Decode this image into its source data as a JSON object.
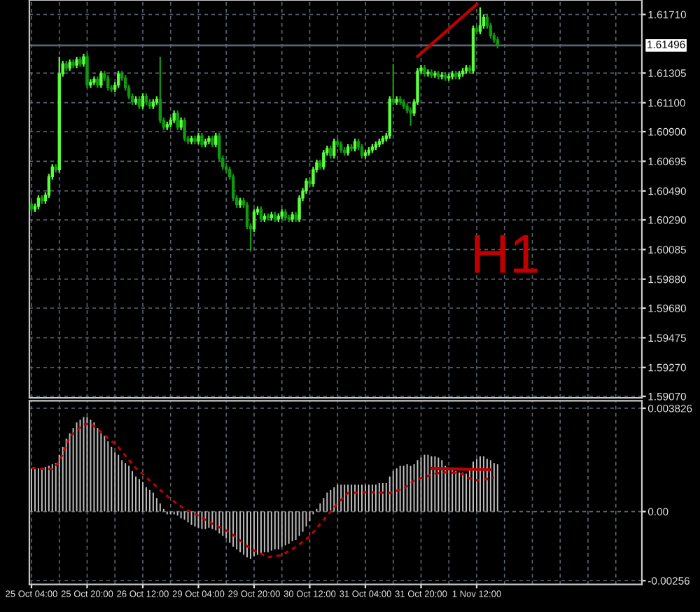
{
  "chart_data": [
    {
      "type": "candlestick",
      "categories": [
        null,
        null,
        null,
        null,
        null,
        null,
        null,
        null,
        null,
        null,
        null,
        null,
        null,
        null,
        null,
        null,
        null,
        null,
        null,
        null,
        null,
        null,
        null,
        null,
        null,
        null,
        null,
        null,
        null,
        null,
        null,
        null,
        null,
        null,
        null,
        null,
        null,
        null,
        null,
        null,
        null,
        null,
        null,
        null,
        null,
        null,
        null,
        null,
        null,
        null,
        null,
        null,
        null,
        null,
        null,
        null,
        null,
        null,
        null,
        null,
        null,
        null,
        null,
        null,
        null,
        null,
        null,
        null,
        null,
        null,
        null,
        null,
        null,
        null,
        null,
        null,
        null,
        null,
        null,
        null,
        null,
        null,
        null,
        null,
        null,
        null,
        null,
        null,
        null,
        null,
        null,
        null,
        null,
        null,
        null,
        null,
        null,
        null,
        null,
        null,
        null,
        null,
        null,
        null,
        null,
        null,
        null,
        null,
        null,
        null,
        null,
        null,
        null,
        null,
        null,
        null,
        null,
        null,
        null,
        null,
        null,
        null,
        null,
        null,
        null,
        null,
        null,
        null,
        null,
        null,
        null,
        null,
        null,
        null,
        null,
        null,
        null,
        null,
        null,
        null,
        null,
        null,
        null,
        null,
        null,
        null,
        null,
        null,
        null,
        null,
        null,
        null,
        null,
        null,
        null,
        null,
        null,
        null,
        null,
        null,
        null,
        null,
        null,
        null,
        null,
        null,
        null,
        null,
        null,
        null,
        null,
        null,
        null,
        null,
        null,
        null
      ],
      "ohlc": [
        [
          1.604,
          1.6042,
          1.60344,
          1.60364
        ],
        [
          1.60364,
          1.60403,
          1.60344,
          1.60383
        ],
        [
          1.60383,
          1.6046,
          1.60363,
          1.6044
        ],
        [
          1.6044,
          1.6046,
          1.60402,
          1.60422
        ],
        [
          1.60422,
          1.60481,
          1.60402,
          1.60461
        ],
        [
          1.60461,
          1.60608,
          1.60441,
          1.60588
        ],
        [
          1.60588,
          1.60676,
          1.60568,
          1.60656
        ],
        [
          1.60656,
          1.60676,
          1.60617,
          1.60637
        ],
        [
          1.60637,
          1.61418,
          1.60617,
          1.613
        ],
        [
          1.613,
          1.61389,
          1.6128,
          1.61369
        ],
        [
          1.61369,
          1.61389,
          1.6132,
          1.6134
        ],
        [
          1.6134,
          1.61399,
          1.6132,
          1.61379
        ],
        [
          1.61379,
          1.61399,
          1.61339,
          1.61359
        ],
        [
          1.61359,
          1.61418,
          1.61339,
          1.61398
        ],
        [
          1.61398,
          1.61418,
          1.61349,
          1.61369
        ],
        [
          1.61369,
          1.61438,
          1.61349,
          1.61418
        ],
        [
          1.61418,
          1.61438,
          1.61202,
          1.61222
        ],
        [
          1.61222,
          1.61262,
          1.61202,
          1.61242
        ],
        [
          1.61242,
          1.61281,
          1.61222,
          1.61261
        ],
        [
          1.61261,
          1.61281,
          1.61202,
          1.61222
        ],
        [
          1.61222,
          1.6132,
          1.61202,
          1.613
        ],
        [
          1.613,
          1.6132,
          1.61251,
          1.61271
        ],
        [
          1.61271,
          1.61291,
          1.61183,
          1.61203
        ],
        [
          1.61203,
          1.61223,
          1.61173,
          1.61193
        ],
        [
          1.61193,
          1.61242,
          1.61173,
          1.61222
        ],
        [
          1.61222,
          1.6132,
          1.61202,
          1.613
        ],
        [
          1.613,
          1.6132,
          1.61251,
          1.61271
        ],
        [
          1.61271,
          1.61291,
          1.61183,
          1.61203
        ],
        [
          1.61203,
          1.61223,
          1.61124,
          1.61144
        ],
        [
          1.61144,
          1.61164,
          1.61085,
          1.61105
        ],
        [
          1.61105,
          1.61145,
          1.61085,
          1.61125
        ],
        [
          1.61125,
          1.61145,
          1.61056,
          1.61076
        ],
        [
          1.61076,
          1.61164,
          1.61056,
          1.61144
        ],
        [
          1.61144,
          1.61164,
          1.61085,
          1.61105
        ],
        [
          1.61105,
          1.61125,
          1.61056,
          1.61076
        ],
        [
          1.61076,
          1.61125,
          1.61056,
          1.61105
        ],
        [
          1.61105,
          1.61145,
          1.61085,
          1.61125
        ],
        [
          1.61125,
          1.61418,
          1.60958,
          1.60978
        ],
        [
          1.60978,
          1.60998,
          1.6091,
          1.6093
        ],
        [
          1.6093,
          1.60969,
          1.6091,
          1.60949
        ],
        [
          1.60949,
          1.60998,
          1.60929,
          1.60978
        ],
        [
          1.60978,
          1.61047,
          1.60958,
          1.61027
        ],
        [
          1.61027,
          1.61047,
          1.6091,
          1.6093
        ],
        [
          1.6093,
          1.60998,
          1.6091,
          1.60978
        ],
        [
          1.60978,
          1.60998,
          1.60832,
          1.60852
        ],
        [
          1.60852,
          1.60872,
          1.60812,
          1.60832
        ],
        [
          1.60832,
          1.60872,
          1.60812,
          1.60852
        ],
        [
          1.60852,
          1.60872,
          1.60812,
          1.60832
        ],
        [
          1.60832,
          1.60891,
          1.60812,
          1.60871
        ],
        [
          1.60871,
          1.60891,
          1.60792,
          1.60812
        ],
        [
          1.60812,
          1.60852,
          1.60792,
          1.60832
        ],
        [
          1.60832,
          1.60872,
          1.60812,
          1.60852
        ],
        [
          1.60852,
          1.60872,
          1.60792,
          1.60812
        ],
        [
          1.60812,
          1.60891,
          1.60792,
          1.60871
        ],
        [
          1.60871,
          1.60891,
          1.60695,
          1.60715
        ],
        [
          1.60715,
          1.60735,
          1.60636,
          1.60656
        ],
        [
          1.60656,
          1.60676,
          1.60617,
          1.60637
        ],
        [
          1.60637,
          1.60657,
          1.60568,
          1.60588
        ],
        [
          1.60588,
          1.60608,
          1.6042,
          1.6044
        ],
        [
          1.6044,
          1.6046,
          1.60373,
          1.60393
        ],
        [
          1.60393,
          1.60442,
          1.60373,
          1.60422
        ],
        [
          1.60422,
          1.60442,
          1.60373,
          1.60393
        ],
        [
          1.60393,
          1.60413,
          1.60226,
          1.60246
        ],
        [
          1.60246,
          1.60266,
          1.60071,
          1.60227
        ],
        [
          1.60227,
          1.60364,
          1.60207,
          1.60344
        ],
        [
          1.60344,
          1.60384,
          1.60324,
          1.60364
        ],
        [
          1.60364,
          1.60384,
          1.60275,
          1.60295
        ],
        [
          1.60295,
          1.60335,
          1.60275,
          1.60315
        ],
        [
          1.60315,
          1.60335,
          1.60285,
          1.60305
        ],
        [
          1.60305,
          1.60345,
          1.60285,
          1.60325
        ],
        [
          1.60325,
          1.60345,
          1.60275,
          1.60295
        ],
        [
          1.60295,
          1.60335,
          1.60275,
          1.60315
        ],
        [
          1.60315,
          1.60364,
          1.60295,
          1.60344
        ],
        [
          1.60344,
          1.60364,
          1.60285,
          1.60305
        ],
        [
          1.60305,
          1.60325,
          1.60275,
          1.60295
        ],
        [
          1.60295,
          1.60345,
          1.60275,
          1.60325
        ],
        [
          1.60325,
          1.60345,
          1.60275,
          1.60295
        ],
        [
          1.60295,
          1.6046,
          1.60275,
          1.6044
        ],
        [
          1.6044,
          1.6051,
          1.6042,
          1.6049
        ],
        [
          1.6049,
          1.60579,
          1.6047,
          1.60559
        ],
        [
          1.60559,
          1.60579,
          1.60519,
          1.60539
        ],
        [
          1.60539,
          1.60657,
          1.60519,
          1.60637
        ],
        [
          1.60637,
          1.60706,
          1.60617,
          1.60686
        ],
        [
          1.60686,
          1.60706,
          1.60636,
          1.60656
        ],
        [
          1.60656,
          1.60774,
          1.60636,
          1.60754
        ],
        [
          1.60754,
          1.60803,
          1.60734,
          1.60783
        ],
        [
          1.60783,
          1.60803,
          1.60714,
          1.60734
        ],
        [
          1.60734,
          1.60852,
          1.60714,
          1.60832
        ],
        [
          1.60832,
          1.60852,
          1.60792,
          1.60812
        ],
        [
          1.60812,
          1.60832,
          1.60753,
          1.60773
        ],
        [
          1.60773,
          1.60793,
          1.60734,
          1.60754
        ],
        [
          1.60754,
          1.60813,
          1.60734,
          1.60793
        ],
        [
          1.60793,
          1.60813,
          1.60763,
          1.60783
        ],
        [
          1.60783,
          1.60852,
          1.60763,
          1.60832
        ],
        [
          1.60832,
          1.60852,
          1.60773,
          1.60793
        ],
        [
          1.60793,
          1.60813,
          1.60714,
          1.60734
        ],
        [
          1.60734,
          1.60774,
          1.60714,
          1.60754
        ],
        [
          1.60754,
          1.60793,
          1.60734,
          1.60773
        ],
        [
          1.60773,
          1.60813,
          1.60753,
          1.60793
        ],
        [
          1.60793,
          1.60832,
          1.60773,
          1.60812
        ],
        [
          1.60812,
          1.60852,
          1.60792,
          1.60832
        ],
        [
          1.60832,
          1.60872,
          1.60812,
          1.60852
        ],
        [
          1.60852,
          1.60891,
          1.60832,
          1.60871
        ],
        [
          1.60871,
          1.61145,
          1.60851,
          1.61125
        ],
        [
          1.61125,
          1.61369,
          1.61085,
          1.61105
        ],
        [
          1.61105,
          1.61145,
          1.61085,
          1.61125
        ],
        [
          1.61125,
          1.61145,
          1.61085,
          1.61105
        ],
        [
          1.61105,
          1.61125,
          1.61056,
          1.61076
        ],
        [
          1.61076,
          1.61096,
          1.61027,
          1.61047
        ],
        [
          1.61047,
          1.61067,
          1.60939,
          1.61027
        ],
        [
          1.61027,
          1.61125,
          1.61007,
          1.61105
        ],
        [
          1.61105,
          1.6134,
          1.61085,
          1.6132
        ],
        [
          1.6132,
          1.6136,
          1.613,
          1.6134
        ],
        [
          1.6134,
          1.6136,
          1.6128,
          1.613
        ],
        [
          1.613,
          1.6133,
          1.6128,
          1.6131
        ],
        [
          1.6131,
          1.6133,
          1.61271,
          1.61291
        ],
        [
          1.61291,
          1.6132,
          1.61271,
          1.613
        ],
        [
          1.613,
          1.6132,
          1.61261,
          1.61281
        ],
        [
          1.61281,
          1.61311,
          1.61261,
          1.61291
        ],
        [
          1.61291,
          1.61311,
          1.61251,
          1.61271
        ],
        [
          1.61271,
          1.61301,
          1.61251,
          1.61281
        ],
        [
          1.61281,
          1.6132,
          1.61261,
          1.613
        ],
        [
          1.613,
          1.6132,
          1.61261,
          1.61281
        ],
        [
          1.61281,
          1.6132,
          1.61261,
          1.613
        ],
        [
          1.613,
          1.6134,
          1.6128,
          1.6132
        ],
        [
          1.6132,
          1.6136,
          1.613,
          1.6134
        ],
        [
          1.6134,
          1.6136,
          1.613,
          1.6132
        ],
        [
          1.6132,
          1.61633,
          1.613,
          1.61613
        ],
        [
          1.61613,
          1.61633,
          1.61573,
          1.61593
        ],
        [
          1.61593,
          1.61759,
          1.61573,
          1.61632
        ],
        [
          1.61632,
          1.61711,
          1.61612,
          1.61691
        ],
        [
          1.61691,
          1.61711,
          1.61612,
          1.61632
        ],
        [
          1.61632,
          1.61652,
          1.61544,
          1.61564
        ],
        [
          1.61564,
          1.61584,
          1.61515,
          1.61535
        ],
        [
          1.61535,
          1.61555,
          1.61476,
          1.61496
        ],
        null,
        null,
        null,
        null,
        null,
        null,
        null,
        null,
        null,
        null,
        null,
        null,
        null,
        null,
        null,
        null,
        null,
        null,
        null,
        null,
        null,
        null,
        null,
        null,
        null,
        null,
        null,
        null,
        null,
        null,
        null,
        null,
        null,
        null,
        null,
        null,
        null,
        null,
        null,
        null,
        null
      ],
      "series": [
        {
          "type": "line",
          "color": "#c00000",
          "values": [
            null,
            null,
            null,
            null,
            null,
            null,
            null,
            null,
            null,
            null,
            null,
            null,
            null,
            null,
            null,
            null,
            null,
            null,
            null,
            null,
            null,
            null,
            null,
            null,
            null,
            null,
            null,
            null,
            null,
            null,
            null,
            null,
            null,
            null,
            null,
            null,
            null,
            null,
            null,
            null,
            null,
            null,
            null,
            null,
            null,
            null,
            null,
            null,
            null,
            null,
            null,
            null,
            null,
            null,
            null,
            null,
            null,
            null,
            null,
            null,
            null,
            null,
            null,
            null,
            null,
            null,
            null,
            null,
            null,
            null,
            null,
            null,
            null,
            null,
            null,
            null,
            null,
            null,
            null,
            null,
            null,
            null,
            null,
            null,
            null,
            null,
            null,
            null,
            null,
            null,
            null,
            null,
            null,
            null,
            null,
            null,
            null,
            null,
            null,
            null,
            null,
            null,
            null,
            null,
            null,
            null,
            null,
            null,
            null,
            null,
            null,
            1.6142,
            null,
            null,
            null,
            null,
            null,
            null,
            null,
            null,
            null,
            null,
            null,
            null,
            null,
            null,
            null,
            null,
            1.6178,
            null,
            null,
            null,
            null,
            null,
            null,
            null,
            null,
            null,
            null,
            null,
            null,
            null,
            null,
            null,
            null,
            null,
            null,
            null,
            null,
            null,
            null,
            null,
            null,
            null,
            null,
            null,
            null,
            null,
            null,
            null,
            null,
            null,
            null,
            null,
            null,
            null,
            null,
            null,
            null,
            null,
            null,
            null,
            null,
            null,
            null,
            null
          ]
        }
      ],
      "ylim": [
        1.5906,
        1.6181
      ],
      "yticks": [
        {
          "value": 1.6171,
          "label": "1.61710"
        },
        {
          "value": 1.61305,
          "label": "1.61305"
        },
        {
          "value": 1.611,
          "label": "1.61100"
        },
        {
          "value": 1.609,
          "label": "1.60900"
        },
        {
          "value": 1.60695,
          "label": "1.60695"
        },
        {
          "value": 1.6049,
          "label": "1.60490"
        },
        {
          "value": 1.6029,
          "label": "1.60290"
        },
        {
          "value": 1.60085,
          "label": "1.60085"
        },
        {
          "value": 1.5988,
          "label": "1.59880"
        },
        {
          "value": 1.5968,
          "label": "1.59680"
        },
        {
          "value": 1.59475,
          "label": "1.59475"
        },
        {
          "value": 1.5927,
          "label": "1.59270"
        },
        {
          "value": 1.5907,
          "label": "1.59070"
        }
      ],
      "ref_lines": [
        {
          "axis": "y",
          "value": 1.61496,
          "label": "1.61496",
          "color": "#5a6470"
        }
      ],
      "annotations": [
        "H1"
      ],
      "tick_labels": "y",
      "grid": true
    },
    {
      "type": "bar",
      "categories": [
        "25 Oct 04:00",
        null,
        null,
        null,
        null,
        null,
        null,
        null,
        null,
        null,
        null,
        null,
        null,
        null,
        null,
        null,
        "25 Oct 20:00",
        null,
        null,
        null,
        null,
        null,
        null,
        null,
        null,
        null,
        null,
        null,
        null,
        null,
        null,
        null,
        "26 Oct 12:00",
        null,
        null,
        null,
        null,
        null,
        null,
        null,
        null,
        null,
        null,
        null,
        null,
        null,
        null,
        null,
        "29 Oct 04:00",
        null,
        null,
        null,
        null,
        null,
        null,
        null,
        null,
        null,
        null,
        null,
        null,
        null,
        null,
        null,
        "29 Oct 20:00",
        null,
        null,
        null,
        null,
        null,
        null,
        null,
        null,
        null,
        null,
        null,
        null,
        null,
        null,
        null,
        "30 Oct 12:00",
        null,
        null,
        null,
        null,
        null,
        null,
        null,
        null,
        null,
        null,
        null,
        null,
        null,
        null,
        null,
        "31 Oct 04:00",
        null,
        null,
        null,
        null,
        null,
        null,
        null,
        null,
        null,
        null,
        null,
        null,
        null,
        null,
        null,
        "31 Oct 20:00",
        null,
        null,
        null,
        null,
        null,
        null,
        null,
        null,
        null,
        null,
        null,
        null,
        null,
        null,
        null,
        "1 Nov 12:00",
        null,
        null,
        null,
        null,
        null,
        null,
        null,
        null,
        null,
        null,
        null,
        null,
        null,
        null,
        null,
        null,
        null,
        null,
        null,
        null,
        null,
        null,
        null,
        null,
        null,
        null,
        null,
        null,
        null,
        null,
        null,
        null,
        null,
        null,
        null,
        null,
        null,
        null,
        null,
        null,
        null,
        null,
        null,
        null,
        null,
        null,
        null
      ],
      "series": [
        {
          "type": "bar",
          "color": "#bdbdbd",
          "values": [
            0.0016,
            0.0016,
            0.0016,
            0.0016,
            0.00165,
            0.0017,
            0.00175,
            0.0018,
            0.0021,
            0.0024,
            0.0027,
            0.0029,
            0.0031,
            0.0033,
            0.0034,
            0.0035,
            0.0035,
            0.0034,
            0.0033,
            0.0031,
            0.0029,
            0.0028,
            0.0026,
            0.0024,
            0.0022,
            0.0021,
            0.0019,
            0.0018,
            0.0017,
            0.0015,
            0.0013,
            0.0012,
            0.0011,
            0.0009,
            0.0008,
            0.0007,
            0.0005,
            0.0003,
            0.0001,
            -0.0001,
            -0.0001,
            -0.0001,
            -0.00015,
            -0.00025,
            -0.0003,
            -0.0004,
            -0.0005,
            -0.00055,
            -0.0006,
            -0.00065,
            -0.00065,
            -0.0006,
            -0.00065,
            -0.0007,
            -0.0008,
            -0.0009,
            -0.001,
            -0.00115,
            -0.0013,
            -0.0014,
            -0.0015,
            -0.0016,
            -0.0017,
            -0.00175,
            -0.00165,
            -0.0016,
            -0.00155,
            -0.0015,
            -0.0015,
            -0.00145,
            -0.0014,
            -0.0014,
            -0.0013,
            -0.00125,
            -0.0012,
            -0.0011,
            -0.00105,
            -0.0009,
            -0.00075,
            -0.00055,
            -0.00035,
            -0.0001,
            0.0001,
            0.0003,
            0.0005,
            0.0007,
            0.0008,
            0.0009,
            0.001,
            0.001,
            0.001,
            0.001,
            0.001,
            0.001,
            0.001,
            0.001,
            0.001,
            0.001,
            0.001,
            0.001,
            0.00105,
            0.00105,
            0.00105,
            0.0013,
            0.0015,
            0.0016,
            0.0017,
            0.0017,
            0.00175,
            0.0017,
            0.00175,
            0.0019,
            0.002,
            0.0021,
            0.0021,
            0.00205,
            0.00205,
            0.002,
            0.0019,
            0.0017,
            0.0016,
            0.00155,
            0.0015,
            0.00145,
            0.00145,
            0.0014,
            0.0016,
            0.00185,
            0.00195,
            0.00205,
            0.00205,
            0.00195,
            0.0019,
            0.0018,
            0.00175,
            null,
            null,
            null,
            null,
            null,
            null,
            null,
            null,
            null,
            null,
            null,
            null,
            null,
            null,
            null,
            null,
            null,
            null,
            null,
            null,
            null,
            null,
            null,
            null,
            null,
            null,
            null,
            null,
            null,
            null,
            null,
            null,
            null,
            null,
            null,
            null,
            null,
            null,
            null,
            null,
            null
          ]
        },
        {
          "type": "line",
          "line_style": "dotted",
          "color": "#c00000",
          "values": [
            0.00161,
            null,
            null,
            null,
            null,
            null,
            0.00157,
            null,
            0.00184,
            null,
            null,
            0.00277,
            null,
            null,
            null,
            0.00323,
            null,
            0.00326,
            null,
            null,
            null,
            0.00284,
            null,
            null,
            null,
            0.00238,
            null,
            null,
            null,
            null,
            0.00161,
            null,
            null,
            null,
            null,
            null,
            0.00092,
            null,
            null,
            null,
            0.00046,
            null,
            null,
            null,
            0.0001,
            null,
            null,
            null,
            -0.00015,
            null,
            null,
            -0.00038,
            null,
            null,
            null,
            null,
            null,
            -0.00077,
            null,
            null,
            null,
            null,
            null,
            -0.00138,
            null,
            null,
            null,
            null,
            -0.00169,
            null,
            null,
            null,
            -0.00161,
            null,
            null,
            null,
            -0.00131,
            null,
            null,
            null,
            -0.00092,
            null,
            null,
            null,
            -0.00031,
            null,
            null,
            null,
            0.00031,
            null,
            null,
            0.00069,
            null,
            null,
            null,
            null,
            null,
            0.00072,
            null,
            null,
            null,
            null,
            null,
            0.00069,
            null,
            null,
            null,
            0.00085,
            null,
            null,
            0.00115,
            null,
            null,
            null,
            null,
            null,
            0.00141,
            null,
            null,
            null,
            0.00146,
            null,
            null,
            null,
            0.00138,
            null,
            null,
            0.00115,
            null,
            null,
            null,
            0.0012,
            null,
            0.00126,
            null,
            null,
            null,
            null,
            null,
            null,
            null,
            null,
            null,
            null,
            null,
            null,
            null,
            null,
            null,
            null,
            null,
            null,
            null,
            null,
            null,
            null,
            null,
            null,
            null,
            null,
            null,
            null,
            null,
            null,
            null,
            null,
            null,
            null,
            null,
            null,
            null,
            null,
            null,
            null,
            null,
            null
          ]
        },
        {
          "type": "line",
          "color": "#c00000",
          "values": [
            null,
            null,
            null,
            null,
            null,
            null,
            null,
            null,
            null,
            null,
            null,
            null,
            null,
            null,
            null,
            null,
            null,
            null,
            null,
            null,
            null,
            null,
            null,
            null,
            null,
            null,
            null,
            null,
            null,
            null,
            null,
            null,
            null,
            null,
            null,
            null,
            null,
            null,
            null,
            null,
            null,
            null,
            null,
            null,
            null,
            null,
            null,
            null,
            null,
            null,
            null,
            null,
            null,
            null,
            null,
            null,
            null,
            null,
            null,
            null,
            null,
            null,
            null,
            null,
            null,
            null,
            null,
            null,
            null,
            null,
            null,
            null,
            null,
            null,
            null,
            null,
            null,
            null,
            null,
            null,
            null,
            null,
            null,
            null,
            null,
            null,
            null,
            null,
            null,
            null,
            null,
            null,
            null,
            null,
            null,
            null,
            null,
            null,
            null,
            null,
            null,
            null,
            null,
            null,
            null,
            null,
            null,
            null,
            null,
            null,
            null,
            null,
            null,
            null,
            null,
            0.0016,
            null,
            null,
            null,
            null,
            null,
            null,
            null,
            null,
            null,
            null,
            null,
            null,
            null,
            null,
            null,
            null,
            0.00155,
            null,
            null,
            null,
            null,
            null,
            null,
            null,
            null,
            null,
            null,
            null,
            null,
            null,
            null,
            null,
            null,
            null,
            null,
            null,
            null,
            null,
            null,
            null,
            null,
            null,
            null,
            null,
            null,
            null,
            null,
            null,
            null,
            null,
            null,
            null,
            null,
            null,
            null,
            null,
            null,
            null,
            null,
            null
          ]
        }
      ],
      "ylim": [
        -0.0027,
        0.0041
      ],
      "yticks": [
        {
          "value": 0.003826,
          "label": "0.003826"
        },
        {
          "value": 0,
          "label": "0.00"
        },
        {
          "value": -0.00256,
          "label": "-0.00256"
        }
      ],
      "grid": true
    }
  ]
}
